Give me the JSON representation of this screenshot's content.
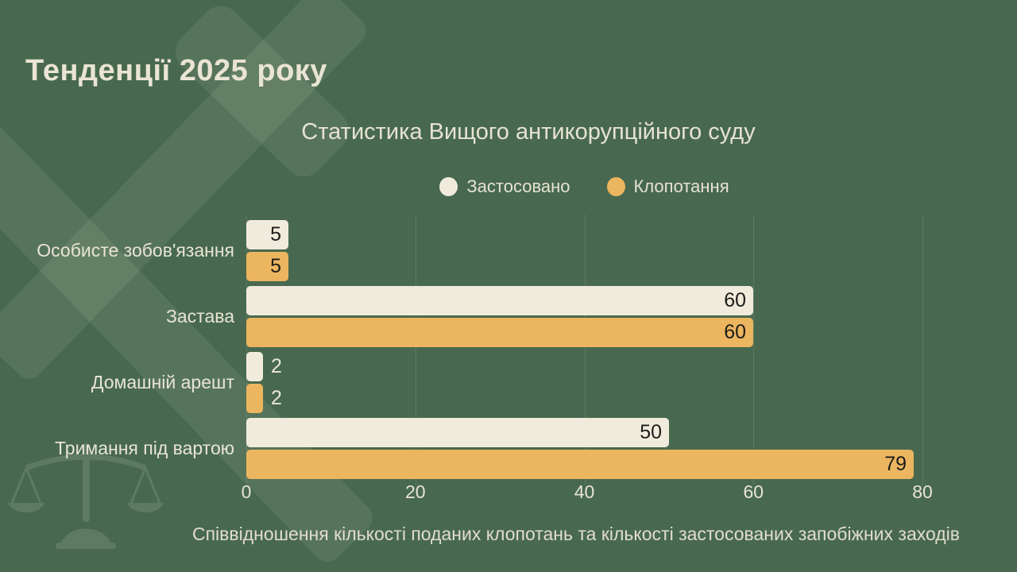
{
  "header": {
    "title": "Тенденції 2025 року"
  },
  "chart_data": {
    "type": "bar",
    "orientation": "horizontal",
    "title": "Статистика Вищого антикорупційного суду",
    "caption": "Співвідношення кількості поданих клопотань та кількості застосованих запобіжних заходів",
    "categories": [
      "Особисте зобов'язання",
      "Застава",
      "Домашній арешт",
      "Тримання під вартою"
    ],
    "series": [
      {
        "name": "Застосовано",
        "values": [
          5,
          60,
          2,
          50
        ],
        "color": "#f0ebdc"
      },
      {
        "name": "Клопотання",
        "values": [
          5,
          60,
          2,
          79
        ],
        "color": "#ecb55f"
      }
    ],
    "xlim": [
      0,
      80
    ],
    "xticks": [
      0,
      20,
      40,
      60,
      80
    ],
    "grid": "vertical-faint",
    "legend_position": "top",
    "value_labels": "shown"
  },
  "colors": {
    "background": "#48694f",
    "applied_bar": "#f0ebdc",
    "requested_bar": "#ecb55f",
    "text_light": "#e9e4d5",
    "text_dark": "#1c1c1a"
  },
  "icons": {
    "gavel_watermark": "crossed-gavel-watermark",
    "scales_watermark": "scales-of-justice-watermark"
  }
}
